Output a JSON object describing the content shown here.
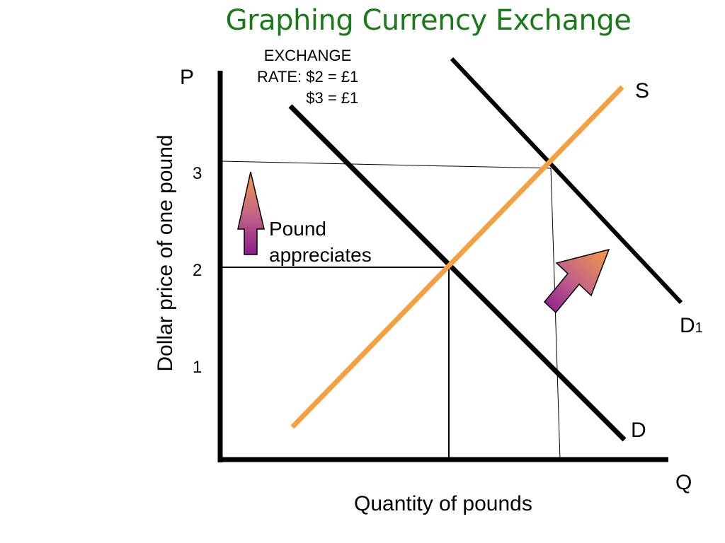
{
  "title": "Graphing Currency Exchange",
  "exchange_rate": {
    "line1": "EXCHANGE",
    "line2": "RATE: $2 = £1",
    "line3": "$3 = £1"
  },
  "axes": {
    "y_letter": "P",
    "x_letter": "Q",
    "y_label": "Dollar price of one pound",
    "x_label": "Quantity of pounds",
    "y_ticks": [
      "1",
      "2",
      "3"
    ]
  },
  "curves": {
    "supply": "S",
    "demand": "D",
    "demand_new_main": "D",
    "demand_new_sub": "1"
  },
  "annotation": "Pound appreciates",
  "annotation_lines": [
    "Pound",
    "appreciates"
  ],
  "colors": {
    "title": "#1a7a1a",
    "supply_line": "#f5a040",
    "lines": "#000000",
    "arrow_top": "#f59a45",
    "arrow_bottom": "#8a1a8a"
  },
  "icons": {
    "up_arrow": "arrow-up-icon",
    "diagonal_arrow": "arrow-up-right-icon"
  }
}
